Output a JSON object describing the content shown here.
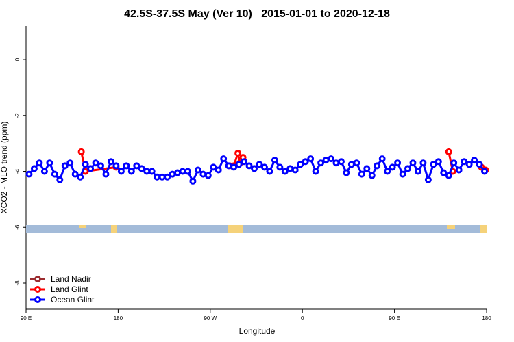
{
  "chart_data": {
    "type": "line",
    "title": "42.5S-37.5S May (Ver 10)   2015-01-01 to 2020-12-18",
    "xlabel": "Longitude",
    "ylabel": "XCO2 - MLO trend (ppm)",
    "xlim": [
      90,
      540
    ],
    "xticks": [
      {
        "value": 90,
        "label": "90 E"
      },
      {
        "value": 180,
        "label": "180"
      },
      {
        "value": 270,
        "label": "90 W"
      },
      {
        "value": 360,
        "label": "0"
      },
      {
        "value": 450,
        "label": "90 E"
      },
      {
        "value": 540,
        "label": "180"
      }
    ],
    "ylim": [
      -8.93,
      1.2
    ],
    "yticks": [
      0,
      -2,
      -4,
      -6,
      -8
    ],
    "legend": "bottom-left",
    "series": [
      {
        "name": "Land Nadir",
        "color": "#9b2d30",
        "x": [],
        "values": []
      },
      {
        "name": "Land Glint",
        "color": "#ff0000",
        "x": [
          144,
          148,
          178,
          200,
          289,
          293,
          297,
          299,
          302,
          400,
          503,
          507,
          520,
          535,
          539
        ],
        "values": [
          -3.3,
          -4.0,
          -3.85,
          null,
          -3.8,
          -3.8,
          -3.35,
          -3.7,
          -3.5,
          null,
          -3.3,
          -4.0,
          null,
          -3.85,
          -3.95
        ]
      },
      {
        "name": "Ocean Glint",
        "color": "#0000ff",
        "x": [
          93,
          98,
          103,
          108,
          113,
          118,
          123,
          128,
          133,
          138,
          143,
          148,
          153,
          158,
          163,
          168,
          173,
          178,
          183,
          188,
          193,
          198,
          203,
          208,
          213,
          218,
          223,
          228,
          233,
          238,
          243,
          248,
          253,
          258,
          263,
          268,
          273,
          278,
          283,
          288,
          293,
          298,
          303,
          308,
          313,
          318,
          323,
          328,
          333,
          338,
          343,
          348,
          353,
          358,
          363,
          368,
          373,
          378,
          383,
          388,
          393,
          398,
          403,
          408,
          413,
          418,
          423,
          428,
          433,
          438,
          443,
          448,
          453,
          458,
          463,
          468,
          473,
          478,
          483,
          488,
          493,
          498,
          503,
          508,
          513,
          518,
          523,
          528,
          533,
          538
        ],
        "values": [
          -4.1,
          -3.9,
          -3.7,
          -4.0,
          -3.7,
          -4.1,
          -4.3,
          -3.8,
          -3.7,
          -4.1,
          -4.2,
          -3.75,
          -3.9,
          -3.7,
          -3.8,
          -4.1,
          -3.65,
          -3.8,
          -4.0,
          -3.8,
          -4.0,
          -3.8,
          -3.9,
          -4.0,
          -4.0,
          -4.2,
          -4.2,
          -4.2,
          -4.1,
          -4.05,
          -4.0,
          -4.0,
          -4.35,
          -3.95,
          -4.1,
          -4.15,
          -3.85,
          -3.95,
          -3.55,
          -3.8,
          -3.85,
          -3.75,
          -3.65,
          -3.8,
          -3.9,
          -3.75,
          -3.85,
          -4.0,
          -3.6,
          -3.85,
          -4.0,
          -3.9,
          -3.95,
          -3.75,
          -3.65,
          -3.55,
          -4.0,
          -3.7,
          -3.6,
          -3.55,
          -3.7,
          -3.65,
          -4.05,
          -3.75,
          -3.7,
          -4.1,
          -3.9,
          -4.15,
          -3.8,
          -3.55,
          -4.0,
          -3.85,
          -3.7,
          -4.1,
          -3.9,
          -3.7,
          -4.0,
          -3.7,
          -4.3,
          -3.75,
          -3.65,
          -4.05,
          -4.15,
          -3.7,
          -3.95,
          -3.65,
          -3.75,
          -3.6,
          -3.75,
          -4.0
        ]
      }
    ]
  }
}
